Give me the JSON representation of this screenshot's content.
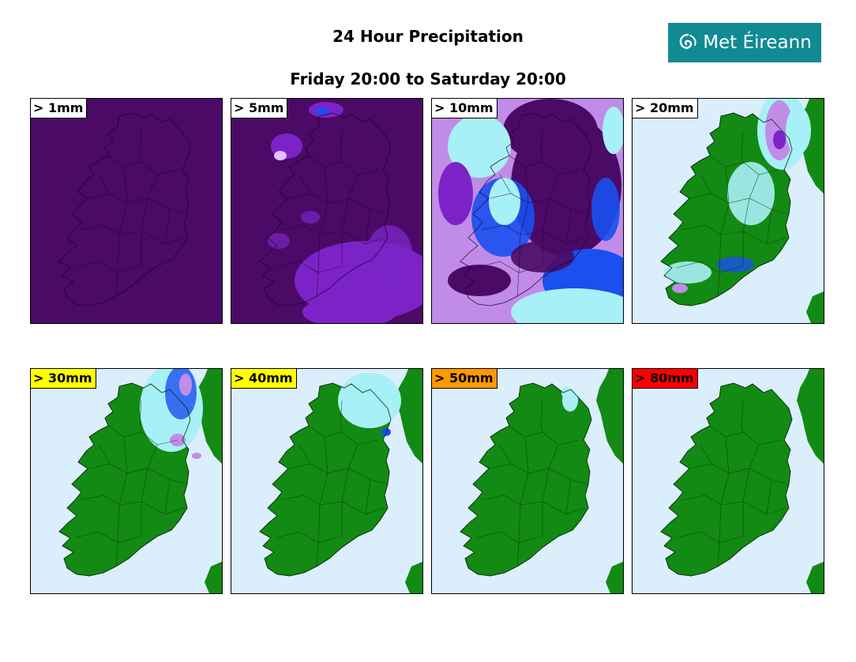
{
  "header": {
    "title": "24 Hour Precipitation",
    "subtitle": "Friday 20:00 to Saturday 20:00"
  },
  "logo": {
    "text": "Met Éireann",
    "icon": "swirl-icon",
    "background": "#108a93"
  },
  "panels": [
    {
      "label": "> 1mm",
      "label_bg": "#ffffff",
      "style": "full"
    },
    {
      "label": "> 5mm",
      "label_bg": "#ffffff",
      "style": "heavy"
    },
    {
      "label": "> 10mm",
      "label_bg": "#ffffff",
      "style": "mixed"
    },
    {
      "label": "> 20mm",
      "label_bg": "#ffffff",
      "style": "light"
    },
    {
      "label": "> 30mm",
      "label_bg": "#ffff00",
      "style": "northeast"
    },
    {
      "label": "> 40mm",
      "label_bg": "#ffff00",
      "style": "north"
    },
    {
      "label": "> 50mm",
      "label_bg": "#ff9900",
      "style": "trace"
    },
    {
      "label": "> 80mm",
      "label_bg": "#ff0000",
      "style": "none"
    }
  ],
  "colors": {
    "land": "#138a13",
    "sea": "#dbeefb",
    "deep_purple": "#4a0a66",
    "purple": "#7b23c7",
    "violet": "#c08ce8",
    "blue": "#1a4ff0",
    "cyan": "#a8f0f7"
  }
}
